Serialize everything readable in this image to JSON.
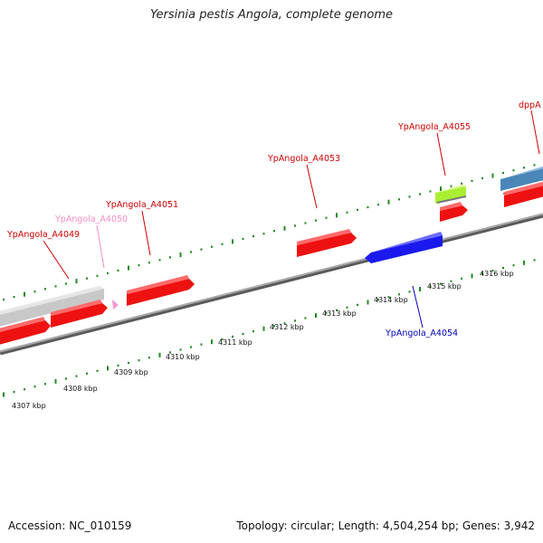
{
  "title": "Yersinia pestis Angola, complete genome",
  "accession_text": "Accession: NC_010159",
  "summary_text": "Topology: circular; Length: 4,504,254 bp; Genes: 3,942",
  "colors": {
    "gene_red": "#ee1111",
    "gene_blue": "#1a1aee",
    "gene_gray": "#c8c8c8",
    "gene_green": "#aaee33",
    "gene_steelblue": "#4a86b8",
    "gene_pink": "#f59ad2",
    "backbone": "#8c8c8c",
    "tick": "#1f8a1f",
    "label_red": "#cc0000",
    "label_blue": "#0000bb",
    "label_pink": "#f28cc4"
  },
  "scale": {
    "unit": "kbp",
    "labels": [
      "4307 kbp",
      "4308 kbp",
      "4309 kbp",
      "4310 kbp",
      "4311 kbp",
      "4312 kbp",
      "4313 kbp",
      "4314 kbp",
      "4315 kbp",
      "4316 kbp"
    ]
  },
  "gene_labels": [
    {
      "text": "YpAngola_A4049",
      "color": "label_red"
    },
    {
      "text": "YpAngola_A4050",
      "color": "label_pink"
    },
    {
      "text": "YpAngola_A4051",
      "color": "label_red"
    },
    {
      "text": "YpAngola_A4053",
      "color": "label_red"
    },
    {
      "text": "YpAngola_A4055",
      "color": "label_red"
    },
    {
      "text": "dppA",
      "color": "label_red"
    },
    {
      "text": "YpAngola_A4054",
      "color": "label_blue"
    }
  ],
  "genes": [
    {
      "name": "gray-gene",
      "strand": "plus",
      "color": "gene_gray"
    },
    {
      "name": "red-gene-upper-left",
      "strand": "plus",
      "color": "gene_red"
    },
    {
      "name": "red-gene-lower-left",
      "strand": "plus",
      "color": "gene_red"
    },
    {
      "name": "pink-gene-A4050",
      "strand": "plus",
      "color": "gene_pink"
    },
    {
      "name": "red-gene-A4051",
      "strand": "plus",
      "color": "gene_red"
    },
    {
      "name": "red-gene-A4053",
      "strand": "plus",
      "color": "gene_red"
    },
    {
      "name": "blue-gene-A4054",
      "strand": "minus",
      "color": "gene_blue"
    },
    {
      "name": "green-gene-A4055",
      "strand": "plus",
      "color": "gene_green"
    },
    {
      "name": "red-gene-small",
      "strand": "plus",
      "color": "gene_red"
    },
    {
      "name": "steelblue-gene-dppA",
      "strand": "plus",
      "color": "gene_steelblue"
    },
    {
      "name": "red-gene-dppA-lower",
      "strand": "plus",
      "color": "gene_red"
    }
  ]
}
